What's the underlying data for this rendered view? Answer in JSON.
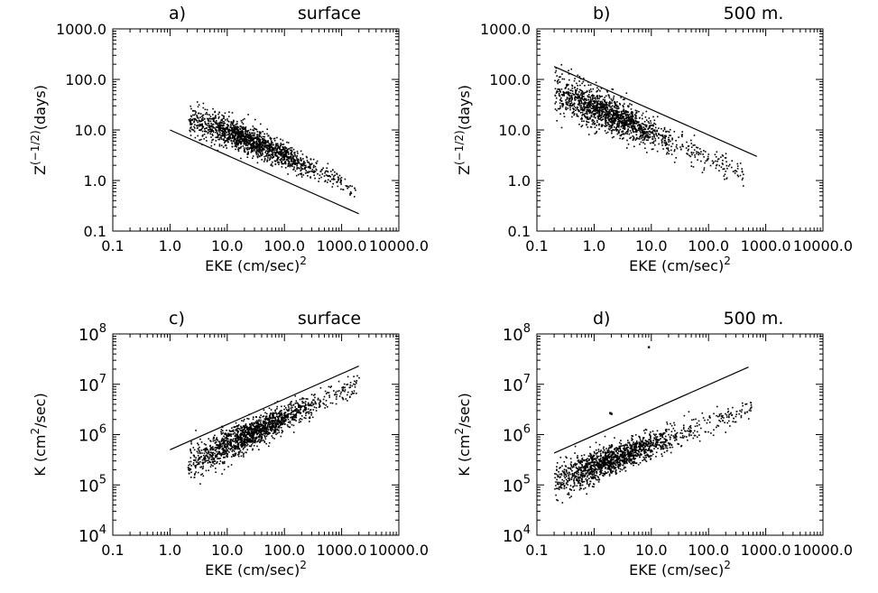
{
  "chart_data": [
    {
      "panel": "a",
      "type": "scatter",
      "title": {
        "label": "a)",
        "text": "surface"
      },
      "xlabel": "EKE (cm/sec)",
      "xlabel_sup": "2",
      "ylabel": {
        "base": "Z",
        "sup": "(−1/2)",
        "unit": "(days)"
      },
      "x_scale": "log",
      "y_scale": "log",
      "xlim": [
        0.1,
        10000
      ],
      "ylim": [
        0.1,
        1000
      ],
      "xticks": [
        "0.1",
        "1.0",
        "10.0",
        "100.0",
        "1000.0",
        "10000.0"
      ],
      "yticks": [
        {
          "v": 0.1,
          "label": "0.1"
        },
        {
          "v": 1,
          "label": "1.0"
        },
        {
          "v": 10,
          "label": "10.0"
        },
        {
          "v": 100,
          "label": "100.0"
        },
        {
          "v": 1000,
          "label": "1000.0"
        }
      ],
      "line": {
        "x": [
          1.0,
          2000.0
        ],
        "y": [
          10.0,
          0.22
        ]
      },
      "cloud": {
        "x": [
          2.0,
          1800.0
        ],
        "y_start": 17.0,
        "y_end": 0.65,
        "bend": 0.1,
        "spread": 0.16,
        "count": 1600,
        "density_center": 25.0
      }
    },
    {
      "panel": "b",
      "type": "scatter",
      "title": {
        "label": "b)",
        "text": "500 m."
      },
      "xlabel": "EKE (cm/sec)",
      "xlabel_sup": "2",
      "ylabel": {
        "base": "Z",
        "sup": "(−1/2)",
        "unit": "(days)"
      },
      "x_scale": "log",
      "y_scale": "log",
      "xlim": [
        0.1,
        10000
      ],
      "ylim": [
        0.1,
        1000
      ],
      "xticks": [
        "0.1",
        "1.0",
        "10.0",
        "100.0",
        "1000.0",
        "10000.0"
      ],
      "yticks": [
        {
          "v": 0.1,
          "label": "0.1"
        },
        {
          "v": 1,
          "label": "1.0"
        },
        {
          "v": 10,
          "label": "10.0"
        },
        {
          "v": 100,
          "label": "100.0"
        },
        {
          "v": 1000,
          "label": "1000.0"
        }
      ],
      "line": {
        "x": [
          0.2,
          700.0
        ],
        "y": [
          180.0,
          3.0
        ]
      },
      "cloud": {
        "x": [
          0.2,
          400.0
        ],
        "y_start": 65.0,
        "y_end": 1.4,
        "bend": 0.0,
        "spread": 0.2,
        "count": 1600,
        "density_center": 1.5
      }
    },
    {
      "panel": "c",
      "type": "scatter",
      "title": {
        "label": "c)",
        "text": "surface"
      },
      "xlabel": "EKE (cm/sec)",
      "xlabel_sup": "2",
      "ylabel": {
        "base": "K (cm",
        "sup": "2",
        "unit": "/sec)"
      },
      "x_scale": "log",
      "y_scale": "log",
      "xlim": [
        0.1,
        10000
      ],
      "ylim": [
        10000,
        100000000
      ],
      "xticks": [
        "0.1",
        "1.0",
        "10.0",
        "100.0",
        "1000.0",
        "10000.0"
      ],
      "yticks": [
        {
          "v": 10000,
          "base": "10",
          "exp": "4"
        },
        {
          "v": 100000,
          "base": "10",
          "exp": "5"
        },
        {
          "v": 1000000,
          "base": "10",
          "exp": "6"
        },
        {
          "v": 10000000,
          "base": "10",
          "exp": "7"
        },
        {
          "v": 100000000,
          "base": "10",
          "exp": "8"
        }
      ],
      "line": {
        "x": [
          1.0,
          2000.0
        ],
        "y": [
          500000,
          23000000
        ]
      },
      "cloud": {
        "x": [
          2.0,
          2000.0
        ],
        "y_start": 280000,
        "y_end": 11000000,
        "bend": 0.0,
        "spread": 0.17,
        "count": 1600,
        "density_center": 25.0
      }
    },
    {
      "panel": "d",
      "type": "scatter",
      "title": {
        "label": "d)",
        "text": "500 m."
      },
      "xlabel": "EKE (cm/sec)",
      "xlabel_sup": "2",
      "ylabel": {
        "base": "K (cm",
        "sup": "2",
        "unit": "/sec)"
      },
      "x_scale": "log",
      "y_scale": "log",
      "xlim": [
        0.1,
        10000
      ],
      "ylim": [
        10000,
        100000000
      ],
      "xticks": [
        "0.1",
        "1.0",
        "10.0",
        "100.0",
        "1000.0",
        "10000.0"
      ],
      "yticks": [
        {
          "v": 10000,
          "base": "10",
          "exp": "4"
        },
        {
          "v": 100000,
          "base": "10",
          "exp": "5"
        },
        {
          "v": 1000000,
          "base": "10",
          "exp": "6"
        },
        {
          "v": 10000000,
          "base": "10",
          "exp": "7"
        },
        {
          "v": 100000000,
          "base": "10",
          "exp": "8"
        }
      ],
      "line": {
        "x": [
          0.2,
          500.0
        ],
        "y": [
          430000,
          22000000
        ]
      },
      "cloud": {
        "x": [
          0.2,
          550.0
        ],
        "y_start": 120000,
        "y_end": 3800000,
        "bend": 0.0,
        "spread": 0.17,
        "count": 1600,
        "density_center": 2.0
      },
      "outliers": [
        {
          "x": 9.0,
          "y": 55000000
        },
        {
          "x": 1.9,
          "y": 2700000
        },
        {
          "x": 2.0,
          "y": 2600000
        }
      ]
    }
  ]
}
